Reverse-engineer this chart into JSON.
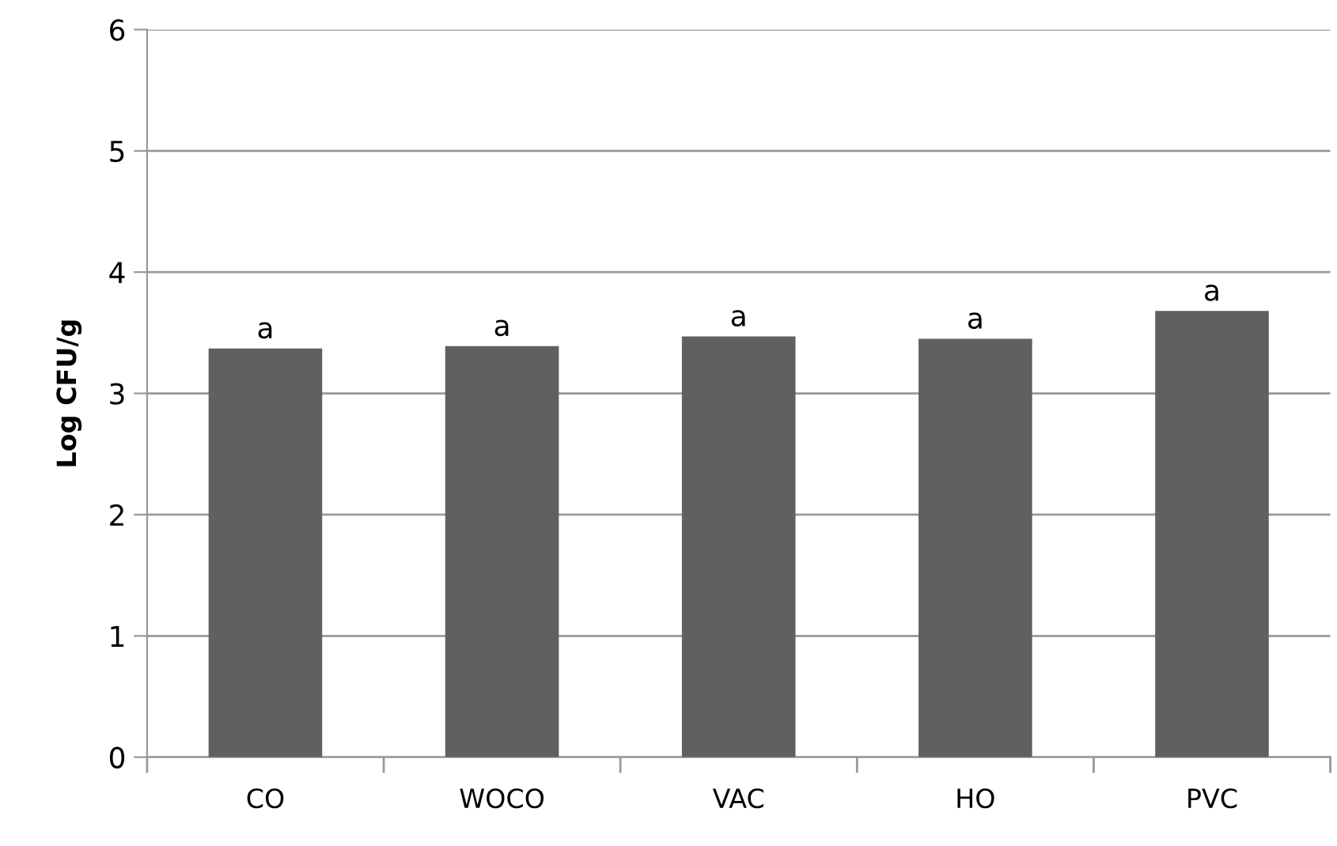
{
  "chart_data": {
    "type": "bar",
    "ylabel": "Log CFU/g",
    "categories": [
      "CO",
      "WOCO",
      "VAC",
      "HO",
      "PVC"
    ],
    "values": [
      3.37,
      3.39,
      3.47,
      3.45,
      3.68
    ],
    "color": "#606060",
    "ylim": [
      0,
      6
    ],
    "yticks": [
      0,
      1,
      2,
      3,
      4,
      5,
      6
    ],
    "grid": "y",
    "annotations": [
      {
        "text": "a",
        "x": "CO",
        "y": 3.37
      },
      {
        "text": "a",
        "x": "WOCO",
        "y": 3.39
      },
      {
        "text": "a",
        "x": "VAC",
        "y": 3.47
      },
      {
        "text": "a",
        "x": "HO",
        "y": 3.45
      },
      {
        "text": "a",
        "x": "PVC",
        "y": 3.68
      }
    ]
  }
}
